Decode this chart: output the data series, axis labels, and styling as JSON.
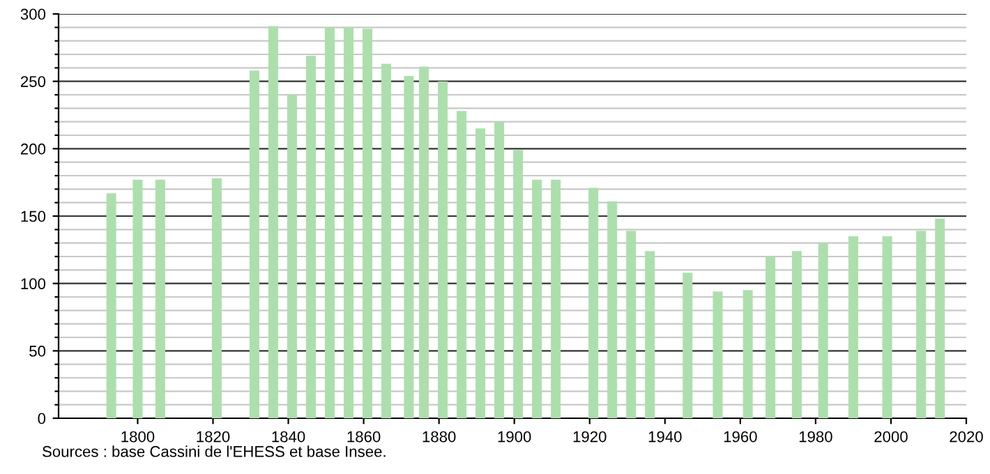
{
  "chart_data": {
    "type": "bar",
    "x": [
      1793,
      1800,
      1806,
      1821,
      1831,
      1836,
      1841,
      1846,
      1851,
      1856,
      1861,
      1866,
      1872,
      1876,
      1881,
      1886,
      1891,
      1896,
      1901,
      1906,
      1911,
      1921,
      1926,
      1931,
      1936,
      1946,
      1954,
      1962,
      1968,
      1975,
      1982,
      1990,
      1999,
      2008,
      2013
    ],
    "values": [
      167,
      177,
      177,
      178,
      258,
      291,
      240,
      269,
      290,
      290,
      289,
      263,
      254,
      261,
      250,
      228,
      215,
      220,
      199,
      177,
      177,
      171,
      161,
      139,
      124,
      108,
      94,
      95,
      120,
      124,
      130,
      135,
      135,
      139,
      148
    ],
    "color": "#addfad",
    "xlim": [
      1779,
      2020
    ],
    "xticks": [
      1800,
      1820,
      1840,
      1860,
      1880,
      1900,
      1920,
      1940,
      1960,
      1980,
      2000,
      2020
    ],
    "ylim": [
      0,
      300
    ],
    "yticks": [
      0,
      {
        "value": 10,
        "label": null
      },
      {
        "value": 20,
        "label": null
      },
      {
        "value": 30,
        "label": null
      },
      {
        "value": 40,
        "label": null
      },
      50,
      {
        "value": 60,
        "label": null
      },
      {
        "value": 70,
        "label": null
      },
      {
        "value": 80,
        "label": null
      },
      {
        "value": 90,
        "label": null
      },
      100,
      {
        "value": 110,
        "label": null
      },
      {
        "value": 120,
        "label": null
      },
      {
        "value": 130,
        "label": null
      },
      {
        "value": 140,
        "label": null
      },
      150,
      {
        "value": 160,
        "label": null
      },
      {
        "value": 170,
        "label": null
      },
      {
        "value": 180,
        "label": null
      },
      {
        "value": 190,
        "label": null
      },
      200,
      {
        "value": 210,
        "label": null
      },
      {
        "value": 220,
        "label": null
      },
      {
        "value": 230,
        "label": null
      },
      {
        "value": 240,
        "label": null
      },
      250,
      {
        "value": 260,
        "label": null
      },
      {
        "value": 270,
        "label": null
      },
      {
        "value": 280,
        "label": null
      },
      {
        "value": 290,
        "label": null
      },
      300
    ],
    "grid": "y",
    "annotations": [
      "Sources : base Cassini de l'EHESS et base Insee."
    ]
  }
}
